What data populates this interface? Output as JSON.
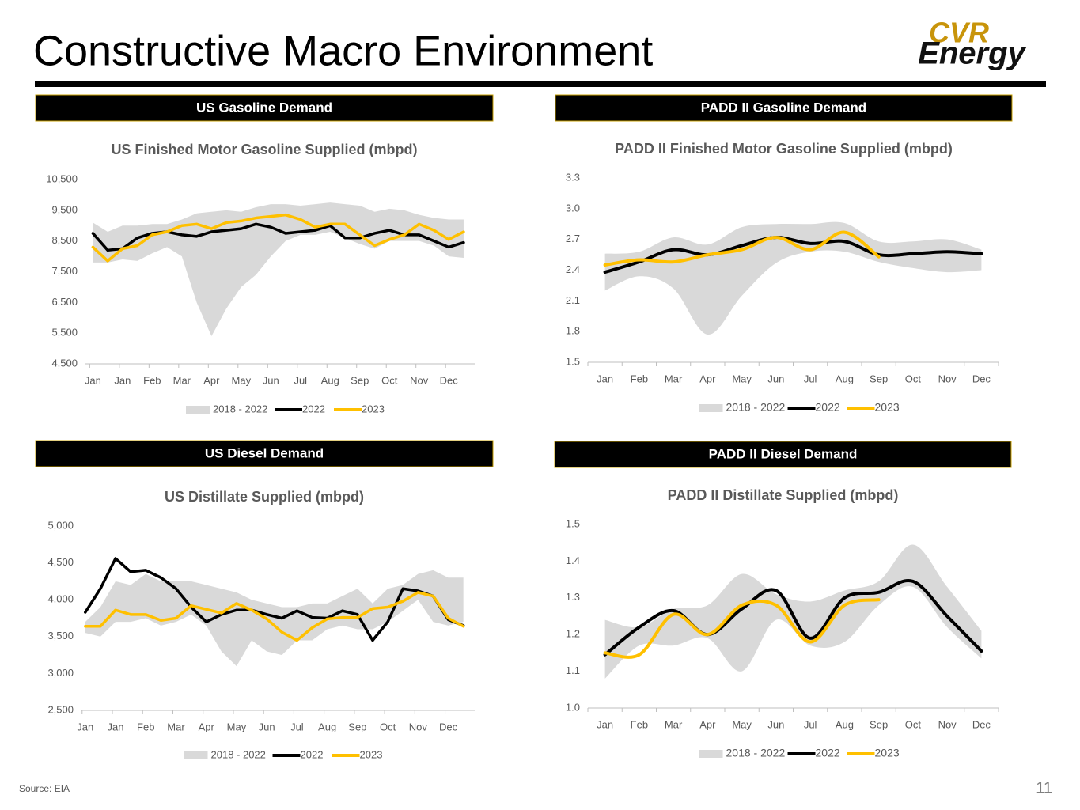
{
  "title": "Constructive Macro Environment",
  "logo": {
    "top": "CVR",
    "bottom": "Energy"
  },
  "source": "Source:  EIA",
  "page_number": "11",
  "chart_data": [
    {
      "type": "line",
      "heading": "US Gasoline Demand",
      "title": "US Finished Motor Gasoline Supplied (mbpd)",
      "x": [
        0,
        2,
        4,
        6,
        8,
        10,
        12,
        14,
        16,
        18,
        20,
        22,
        24,
        26,
        28,
        30,
        32,
        34,
        36,
        38,
        40,
        42,
        44,
        46,
        48,
        50
      ],
      "xlim": [
        -1,
        51.5
      ],
      "xticks": [
        {
          "value": 0,
          "label": "Jan"
        },
        {
          "value": 4,
          "label": "Jan"
        },
        {
          "value": 8,
          "label": "Feb"
        },
        {
          "value": 12,
          "label": "Mar"
        },
        {
          "value": 16,
          "label": "Apr"
        },
        {
          "value": 20,
          "label": "May"
        },
        {
          "value": 24,
          "label": "Jun"
        },
        {
          "value": 28,
          "label": "Jul"
        },
        {
          "value": 32,
          "label": "Aug"
        },
        {
          "value": 36,
          "label": "Sep"
        },
        {
          "value": 40,
          "label": "Oct"
        },
        {
          "value": 44,
          "label": "Nov"
        },
        {
          "value": 48,
          "label": "Dec"
        }
      ],
      "ylim": [
        4500,
        10500
      ],
      "yticks": [
        {
          "value": 4500,
          "label": "4,500"
        },
        {
          "value": 5500,
          "label": "5,500"
        },
        {
          "value": 6500,
          "label": "6,500"
        },
        {
          "value": 7500,
          "label": "7,500"
        },
        {
          "value": 8500,
          "label": "8,500"
        },
        {
          "value": 9500,
          "label": "9,500"
        },
        {
          "value": 10500,
          "label": "10,500"
        }
      ],
      "series": [
        {
          "name": "2018 - 2022",
          "color": "#d9d9d9",
          "upper": [
            9100,
            8800,
            9000,
            9000,
            9050,
            9050,
            9200,
            9400,
            9450,
            9500,
            9450,
            9600,
            9700,
            9700,
            9650,
            9700,
            9750,
            9700,
            9650,
            9450,
            9550,
            9500,
            9350,
            9250,
            9200,
            9200
          ],
          "lower": [
            7800,
            7800,
            7900,
            7850,
            8100,
            8300,
            8000,
            6500,
            5400,
            6300,
            7000,
            7400,
            8000,
            8500,
            8700,
            8700,
            8800,
            8600,
            8400,
            8250,
            8500,
            8500,
            8500,
            8350,
            8000,
            7950
          ]
        },
        {
          "name": "2022",
          "color": "#000000",
          "values": [
            8750,
            8200,
            8250,
            8600,
            8750,
            8800,
            8700,
            8650,
            8800,
            8850,
            8900,
            9050,
            8950,
            8750,
            8800,
            8850,
            9000,
            8600,
            8600,
            8750,
            8850,
            8700,
            8700,
            8500,
            8300,
            8450
          ]
        },
        {
          "name": "2023",
          "color": "#ffc000",
          "values": [
            8300,
            7850,
            8250,
            8350,
            8700,
            8800,
            9000,
            9050,
            8900,
            9100,
            9150,
            9250,
            9300,
            9350,
            9200,
            8950,
            9050,
            9050,
            8700,
            8350,
            8550,
            8700,
            9050,
            8850,
            8550,
            8800
          ]
        }
      ]
    },
    {
      "type": "line",
      "smooth": true,
      "heading": "PADD II Gasoline Demand",
      "title": "PADD II Finished Motor Gasoline Supplied (mbpd)",
      "categories": [
        "Jan",
        "Feb",
        "Mar",
        "Apr",
        "May",
        "Jun",
        "Jul",
        "Aug",
        "Sep",
        "Oct",
        "Nov",
        "Dec"
      ],
      "ylim": [
        1.5,
        3.3
      ],
      "yticks": [
        1.5,
        1.8,
        2.1,
        2.4,
        2.7,
        {
          "value": 3,
          "label": "3.0"
        },
        3.3
      ],
      "series": [
        {
          "name": "2018 - 2022",
          "color": "#d9d9d9",
          "upper": [
            2.56,
            2.58,
            2.72,
            2.65,
            2.82,
            2.85,
            2.85,
            2.86,
            2.68,
            2.68,
            2.7,
            2.6
          ],
          "lower": [
            2.2,
            2.34,
            2.22,
            1.77,
            2.15,
            2.47,
            2.58,
            2.58,
            2.48,
            2.42,
            2.38,
            2.4
          ]
        },
        {
          "name": "2022",
          "color": "#000000",
          "values": [
            2.38,
            2.48,
            2.6,
            2.55,
            2.64,
            2.72,
            2.66,
            2.68,
            2.55,
            2.56,
            2.58,
            2.56
          ]
        },
        {
          "name": "2023",
          "color": "#ffc000",
          "values": [
            2.45,
            2.5,
            2.48,
            2.55,
            2.6,
            2.72,
            2.6,
            2.77,
            2.53,
            null,
            null,
            null
          ]
        }
      ]
    },
    {
      "type": "line",
      "heading": "US Diesel Demand",
      "title": "US Distillate Supplied (mbpd)",
      "x": [
        0,
        2,
        4,
        6,
        8,
        10,
        12,
        14,
        16,
        18,
        20,
        22,
        24,
        26,
        28,
        30,
        32,
        34,
        36,
        38,
        40,
        42,
        44,
        46,
        48,
        50
      ],
      "xlim": [
        -0.5,
        51.5
      ],
      "xticks": [
        {
          "value": 0,
          "label": "Jan"
        },
        {
          "value": 4,
          "label": "Jan"
        },
        {
          "value": 8,
          "label": "Feb"
        },
        {
          "value": 12,
          "label": "Mar"
        },
        {
          "value": 16,
          "label": "Apr"
        },
        {
          "value": 20,
          "label": "May"
        },
        {
          "value": 24,
          "label": "Jun"
        },
        {
          "value": 28,
          "label": "Jul"
        },
        {
          "value": 32,
          "label": "Aug"
        },
        {
          "value": 36,
          "label": "Sep"
        },
        {
          "value": 40,
          "label": "Oct"
        },
        {
          "value": 44,
          "label": "Nov"
        },
        {
          "value": 48,
          "label": "Dec"
        }
      ],
      "ylim": [
        2500,
        5000
      ],
      "yticks": [
        {
          "value": 2500,
          "label": "2,500"
        },
        {
          "value": 3000,
          "label": "3,000"
        },
        {
          "value": 3500,
          "label": "3,500"
        },
        {
          "value": 4000,
          "label": "4,000"
        },
        {
          "value": 4500,
          "label": "4,500"
        },
        {
          "value": 5000,
          "label": "5,000"
        }
      ],
      "series": [
        {
          "name": "2018 - 2022",
          "color": "#d9d9d9",
          "upper": [
            3700,
            3900,
            4250,
            4200,
            4350,
            4250,
            4250,
            4250,
            4200,
            4150,
            4100,
            4000,
            3950,
            3900,
            3900,
            3950,
            3950,
            4050,
            4150,
            3950,
            4150,
            4200,
            4350,
            4400,
            4300,
            4300
          ],
          "lower": [
            3550,
            3500,
            3700,
            3700,
            3750,
            3650,
            3700,
            3800,
            3650,
            3300,
            3100,
            3450,
            3300,
            3250,
            3450,
            3450,
            3600,
            3650,
            3600,
            3600,
            3700,
            3850,
            4000,
            3700,
            3650,
            3700
          ]
        },
        {
          "name": "2022",
          "color": "#000000",
          "values": [
            3830,
            4150,
            4560,
            4380,
            4400,
            4300,
            4150,
            3900,
            3700,
            3800,
            3860,
            3860,
            3800,
            3750,
            3850,
            3760,
            3750,
            3850,
            3800,
            3450,
            3700,
            4150,
            4120,
            4050,
            3730,
            3650
          ]
        },
        {
          "name": "2023",
          "color": "#ffc000",
          "values": [
            3640,
            3640,
            3860,
            3800,
            3800,
            3720,
            3750,
            3920,
            3870,
            3820,
            3950,
            3860,
            3740,
            3560,
            3450,
            3620,
            3740,
            3760,
            3760,
            3880,
            3900,
            3980,
            4100,
            4050,
            3750,
            3640
          ]
        }
      ]
    },
    {
      "type": "line",
      "smooth": true,
      "heading": "PADD II Diesel Demand",
      "title": "PADD II Distillate Supplied (mbpd)",
      "categories": [
        "Jan",
        "Feb",
        "Mar",
        "Apr",
        "May",
        "Jun",
        "Jul",
        "Aug",
        "Sep",
        "Oct",
        "Nov",
        "Dec"
      ],
      "ylim": [
        1.0,
        1.5
      ],
      "yticks": [
        {
          "value": 1,
          "label": "1.0"
        },
        1.1,
        1.2,
        1.3,
        1.4,
        1.5
      ],
      "series": [
        {
          "name": "2018 - 2022",
          "color": "#d9d9d9",
          "upper": [
            1.24,
            1.22,
            1.27,
            1.28,
            1.365,
            1.31,
            1.29,
            1.32,
            1.345,
            1.445,
            1.33,
            1.21
          ],
          "lower": [
            1.08,
            1.17,
            1.17,
            1.19,
            1.1,
            1.24,
            1.17,
            1.18,
            1.28,
            1.33,
            1.22,
            1.135
          ]
        },
        {
          "name": "2022",
          "color": "#000000",
          "values": [
            1.145,
            1.22,
            1.265,
            1.2,
            1.27,
            1.32,
            1.19,
            1.3,
            1.315,
            1.345,
            1.25,
            1.155
          ]
        },
        {
          "name": "2023",
          "color": "#ffc000",
          "values": [
            1.15,
            1.145,
            1.255,
            1.2,
            1.28,
            1.28,
            1.18,
            1.28,
            1.295,
            null,
            null,
            null
          ]
        }
      ]
    }
  ]
}
